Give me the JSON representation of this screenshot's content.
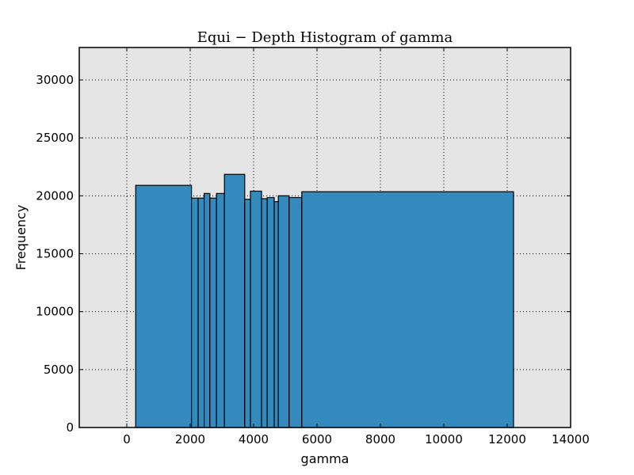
{
  "chart_data": {
    "type": "bar",
    "title": "Equi − Depth Histogram of gamma",
    "xlabel": "gamma",
    "ylabel": "Frequency",
    "xlim": [
      -1500,
      14000
    ],
    "ylim": [
      0,
      32800
    ],
    "xticks": [
      0,
      2000,
      4000,
      6000,
      8000,
      10000,
      12000,
      14000
    ],
    "yticks": [
      0,
      5000,
      10000,
      15000,
      20000,
      25000,
      30000
    ],
    "grid": true,
    "background": "#e5e5e5",
    "bar_color": "#348abd",
    "bins": [
      {
        "x0": 280,
        "x1": 2040,
        "value": 20900
      },
      {
        "x0": 2040,
        "x1": 2250,
        "value": 19800
      },
      {
        "x0": 2250,
        "x1": 2440,
        "value": 19800
      },
      {
        "x0": 2440,
        "x1": 2620,
        "value": 20200
      },
      {
        "x0": 2620,
        "x1": 2830,
        "value": 19800
      },
      {
        "x0": 2830,
        "x1": 3080,
        "value": 20200
      },
      {
        "x0": 3080,
        "x1": 3720,
        "value": 21850
      },
      {
        "x0": 3720,
        "x1": 3900,
        "value": 19700
      },
      {
        "x0": 3900,
        "x1": 4250,
        "value": 20400
      },
      {
        "x0": 4250,
        "x1": 4430,
        "value": 19750
      },
      {
        "x0": 4430,
        "x1": 4650,
        "value": 19850
      },
      {
        "x0": 4650,
        "x1": 4780,
        "value": 19500
      },
      {
        "x0": 4780,
        "x1": 5120,
        "value": 20000
      },
      {
        "x0": 5120,
        "x1": 5520,
        "value": 19850
      },
      {
        "x0": 5520,
        "x1": 12200,
        "value": 20350
      }
    ]
  }
}
